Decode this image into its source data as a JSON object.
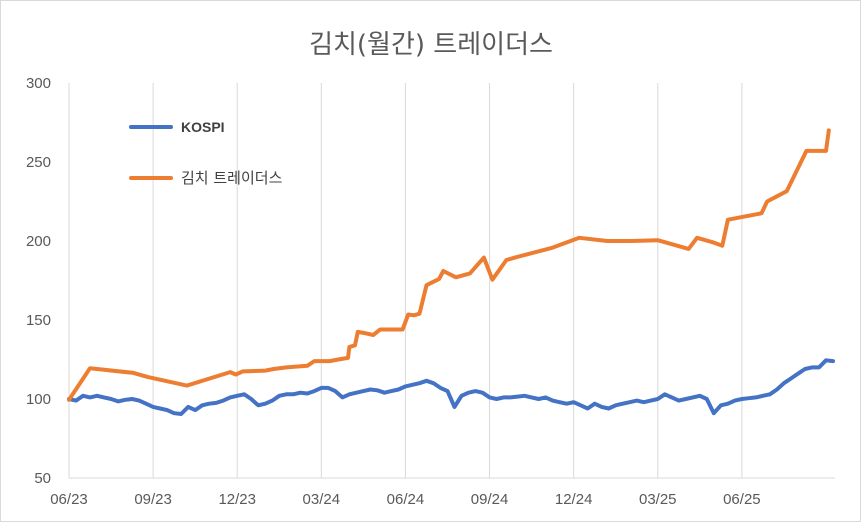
{
  "chart_data": {
    "type": "line",
    "title": "김치(월간) 트레이더스",
    "xlabel": "",
    "ylabel": "",
    "ylim": [
      50,
      300
    ],
    "yticks": [
      "300",
      "250",
      "200",
      "150",
      "100",
      "50"
    ],
    "xticks": [
      "06/23",
      "09/23",
      "12/23",
      "03/24",
      "06/24",
      "09/24",
      "12/24",
      "03/25",
      "06/25"
    ],
    "grid": "vertical",
    "legend_position": "top-left",
    "series": [
      {
        "name": "KOSPI",
        "color": "#4472c4",
        "points": [
          [
            0,
            100
          ],
          [
            0.25,
            99
          ],
          [
            0.5,
            102
          ],
          [
            0.75,
            101
          ],
          [
            1.0,
            102
          ],
          [
            1.25,
            101
          ],
          [
            1.5,
            100
          ],
          [
            1.75,
            98.5
          ],
          [
            2.0,
            99.5
          ],
          [
            2.25,
            100
          ],
          [
            2.5,
            99
          ],
          [
            2.75,
            97
          ],
          [
            3.0,
            95
          ],
          [
            3.25,
            94
          ],
          [
            3.5,
            93
          ],
          [
            3.75,
            91
          ],
          [
            4.0,
            90.5
          ],
          [
            4.25,
            95
          ],
          [
            4.5,
            93
          ],
          [
            4.75,
            96
          ],
          [
            5.0,
            97
          ],
          [
            5.25,
            97.5
          ],
          [
            5.5,
            99
          ],
          [
            5.75,
            101
          ],
          [
            6.0,
            102
          ],
          [
            6.25,
            103
          ],
          [
            6.5,
            100
          ],
          [
            6.75,
            96
          ],
          [
            7.0,
            97
          ],
          [
            7.25,
            99
          ],
          [
            7.5,
            102
          ],
          [
            7.75,
            103
          ],
          [
            8.0,
            103
          ],
          [
            8.25,
            104
          ],
          [
            8.5,
            103.5
          ],
          [
            8.75,
            105
          ],
          [
            9.0,
            107
          ],
          [
            9.25,
            107
          ],
          [
            9.5,
            105
          ],
          [
            9.75,
            101
          ],
          [
            10.0,
            103
          ],
          [
            10.25,
            104
          ],
          [
            10.5,
            105
          ],
          [
            10.75,
            106
          ],
          [
            11.0,
            105.5
          ],
          [
            11.25,
            104
          ],
          [
            11.5,
            105
          ],
          [
            11.75,
            106
          ],
          [
            12.0,
            108
          ],
          [
            12.25,
            109
          ],
          [
            12.5,
            110
          ],
          [
            12.75,
            111.5
          ],
          [
            13.0,
            110
          ],
          [
            13.25,
            107
          ],
          [
            13.5,
            105
          ],
          [
            13.75,
            95
          ],
          [
            14.0,
            102
          ],
          [
            14.25,
            104
          ],
          [
            14.5,
            105
          ],
          [
            14.75,
            104
          ],
          [
            15.0,
            101
          ],
          [
            15.25,
            100
          ],
          [
            15.5,
            101
          ],
          [
            15.75,
            101
          ],
          [
            16.0,
            101.5
          ],
          [
            16.25,
            102
          ],
          [
            16.5,
            101
          ],
          [
            16.75,
            100
          ],
          [
            17.0,
            101
          ],
          [
            17.25,
            99
          ],
          [
            17.5,
            98
          ],
          [
            17.75,
            97
          ],
          [
            18.0,
            98
          ],
          [
            18.25,
            96
          ],
          [
            18.5,
            94
          ],
          [
            18.75,
            97
          ],
          [
            19.0,
            95
          ],
          [
            19.25,
            94
          ],
          [
            19.5,
            96
          ],
          [
            19.75,
            97
          ],
          [
            20.0,
            98
          ],
          [
            20.25,
            99
          ],
          [
            20.5,
            98
          ],
          [
            20.75,
            99
          ],
          [
            21.0,
            100
          ],
          [
            21.25,
            103
          ],
          [
            21.5,
            101
          ],
          [
            21.75,
            99
          ],
          [
            22.0,
            100
          ],
          [
            22.25,
            101
          ],
          [
            22.5,
            102
          ],
          [
            22.75,
            100
          ],
          [
            23.0,
            91
          ],
          [
            23.25,
            96
          ],
          [
            23.5,
            97
          ],
          [
            23.75,
            99
          ],
          [
            24.0,
            100
          ],
          [
            24.25,
            100.5
          ],
          [
            24.5,
            101
          ],
          [
            24.75,
            102
          ],
          [
            25.0,
            103
          ],
          [
            25.25,
            106
          ],
          [
            25.5,
            110
          ],
          [
            25.75,
            113
          ],
          [
            26.0,
            116
          ],
          [
            26.25,
            119
          ],
          [
            26.5,
            120
          ],
          [
            26.75,
            120
          ],
          [
            27.0,
            124.5
          ],
          [
            27.25,
            124
          ]
        ]
      },
      {
        "name": "김치 트레이더스",
        "color": "#ed7d31",
        "points": [
          [
            0,
            99.5
          ],
          [
            0.75,
            119.5
          ],
          [
            2.3,
            116.5
          ],
          [
            2.8,
            114
          ],
          [
            4.2,
            108.5
          ],
          [
            5.75,
            117
          ],
          [
            5.95,
            115.5
          ],
          [
            6.2,
            117.5
          ],
          [
            7.0,
            118
          ],
          [
            7.3,
            119
          ],
          [
            7.75,
            120
          ],
          [
            8.5,
            121
          ],
          [
            8.75,
            124
          ],
          [
            9.3,
            124
          ],
          [
            9.6,
            125
          ],
          [
            9.95,
            126
          ],
          [
            10.0,
            133
          ],
          [
            10.2,
            134
          ],
          [
            10.3,
            142.5
          ],
          [
            10.6,
            141.5
          ],
          [
            10.85,
            140.5
          ],
          [
            11.1,
            144
          ],
          [
            11.9,
            144
          ],
          [
            12.1,
            153.5
          ],
          [
            12.3,
            153
          ],
          [
            12.5,
            154
          ],
          [
            12.75,
            172
          ],
          [
            13.2,
            176
          ],
          [
            13.35,
            181
          ],
          [
            13.8,
            177
          ],
          [
            14.3,
            179.5
          ],
          [
            14.8,
            189.5
          ],
          [
            15.1,
            175.5
          ],
          [
            15.6,
            188
          ],
          [
            16.0,
            190
          ],
          [
            17.2,
            195.5
          ],
          [
            18.2,
            202
          ],
          [
            19.2,
            200
          ],
          [
            20.0,
            200
          ],
          [
            21.0,
            200.5
          ],
          [
            22.1,
            195
          ],
          [
            22.4,
            202
          ],
          [
            23.0,
            199
          ],
          [
            23.3,
            197
          ],
          [
            23.5,
            213.5
          ],
          [
            24.7,
            217.5
          ],
          [
            24.9,
            225
          ],
          [
            25.6,
            231.5
          ],
          [
            26.3,
            257
          ],
          [
            26.7,
            257
          ],
          [
            27.0,
            257
          ],
          [
            27.1,
            270
          ]
        ]
      }
    ]
  }
}
